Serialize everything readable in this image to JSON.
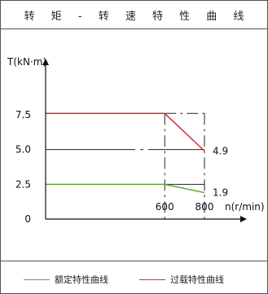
{
  "chart_data": {
    "type": "line",
    "title": "转 矩 - 转 速 特 性 曲 线",
    "ylabel": "T(kN·m)",
    "xlabel": "n(r/min)",
    "xlim": [
      0,
      900
    ],
    "ylim": [
      0,
      9.5
    ],
    "x_ticks": [
      {
        "value": 600,
        "label": "600"
      },
      {
        "value": 800,
        "label": "800"
      }
    ],
    "y_ticks": [
      {
        "value": 0,
        "label": "0"
      },
      {
        "value": 2.5,
        "label": "2.5"
      },
      {
        "value": 5.0,
        "label": "5.0"
      },
      {
        "value": 7.5,
        "label": "7.5"
      }
    ],
    "series": [
      {
        "name": "额定特性曲线",
        "color": "#5aa83c",
        "x": [
          0,
          600,
          800
        ],
        "y": [
          2.5,
          2.5,
          1.9
        ]
      },
      {
        "name": "过载特性曲线",
        "color": "#d92b2b",
        "x": [
          0,
          600,
          800
        ],
        "y": [
          7.6,
          7.6,
          4.9
        ]
      }
    ],
    "annotations": [
      {
        "x": 800,
        "y": 4.9,
        "label": "4.9"
      },
      {
        "x": 800,
        "y": 1.9,
        "label": "1.9"
      }
    ],
    "legend_position": "bottom"
  }
}
